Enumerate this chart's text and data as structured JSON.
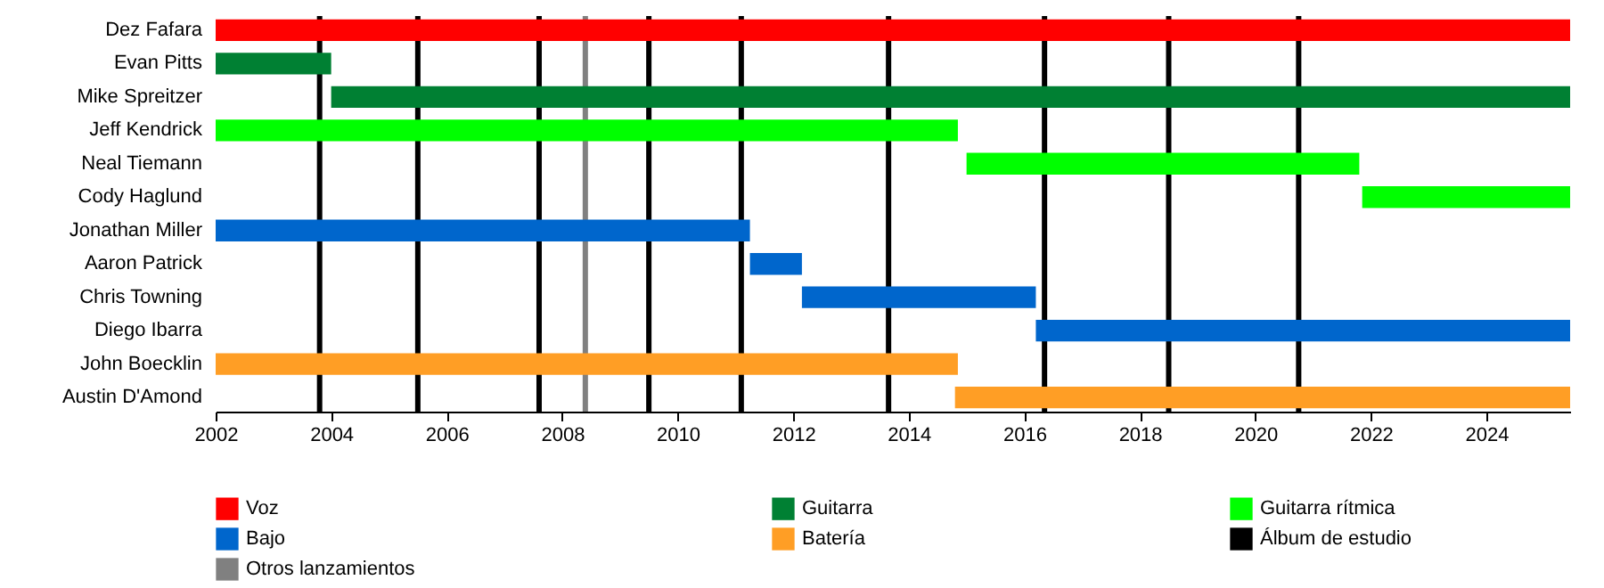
{
  "chart_data": {
    "type": "bar",
    "orientation": "horizontal",
    "categories": [
      "Dez Fafara",
      "Evan Pitts",
      "Mike Spreitzer",
      "Jeff Kendrick",
      "Neal Tiemann",
      "Cody Haglund",
      "Jonathan Miller",
      "Aaron Patrick",
      "Chris Towning",
      "Diego Ibarra",
      "John Boecklin",
      "Austin D'Amond"
    ],
    "series": [
      {
        "name": "Voz",
        "color": "#ff0000",
        "base": [
          2002,
          null,
          null,
          null,
          null,
          null,
          null,
          null,
          null,
          null,
          null,
          null
        ],
        "values": [
          23.45,
          null,
          null,
          null,
          null,
          null,
          null,
          null,
          null,
          null,
          null,
          null
        ]
      },
      {
        "name": "Guitarra",
        "color": "#008033",
        "base": [
          null,
          2002,
          2004,
          null,
          null,
          null,
          null,
          null,
          null,
          null,
          null,
          null
        ],
        "values": [
          null,
          2,
          21.45,
          null,
          null,
          null,
          null,
          null,
          null,
          null,
          null,
          null
        ]
      },
      {
        "name": "Guitarra rítmica",
        "color": "#00ff00",
        "base": [
          null,
          null,
          null,
          2002,
          2015,
          2021.85,
          null,
          null,
          null,
          null,
          null,
          null
        ],
        "values": [
          null,
          null,
          null,
          12.85,
          6.8,
          3.6,
          null,
          null,
          null,
          null,
          null,
          null
        ]
      },
      {
        "name": "Bajo",
        "color": "#0066cc",
        "base": [
          null,
          null,
          null,
          null,
          null,
          null,
          2002,
          2011.25,
          2012.15,
          2016.2,
          null,
          null
        ],
        "values": [
          null,
          null,
          null,
          null,
          null,
          null,
          9.25,
          0.9,
          4.05,
          9.25,
          null,
          null
        ]
      },
      {
        "name": "Batería",
        "color": "#ff9e25",
        "base": [
          null,
          null,
          null,
          null,
          null,
          null,
          null,
          null,
          null,
          null,
          2002,
          2014.8
        ],
        "values": [
          null,
          null,
          null,
          null,
          null,
          null,
          null,
          null,
          null,
          null,
          12.85,
          10.65
        ]
      }
    ],
    "ref_lines": [
      {
        "axis": "x",
        "value": 2003.8,
        "label": "Álbum de estudio",
        "color": "#000000"
      },
      {
        "axis": "x",
        "value": 2005.5,
        "color": "#000000"
      },
      {
        "axis": "x",
        "value": 2007.6,
        "color": "#000000"
      },
      {
        "axis": "x",
        "value": 2009.5,
        "color": "#000000"
      },
      {
        "axis": "x",
        "value": 2011.1,
        "color": "#000000"
      },
      {
        "axis": "x",
        "value": 2013.65,
        "color": "#000000"
      },
      {
        "axis": "x",
        "value": 2016.35,
        "color": "#000000"
      },
      {
        "axis": "x",
        "value": 2018.5,
        "color": "#000000"
      },
      {
        "axis": "x",
        "value": 2020.75,
        "color": "#000000"
      },
      {
        "axis": "x",
        "value": 2008.4,
        "label": "Otros lanzamientos",
        "color": "#808080"
      }
    ],
    "xlim": [
      2002,
      2025.45
    ],
    "xticks": [
      2002,
      2004,
      2006,
      2008,
      2010,
      2012,
      2014,
      2016,
      2018,
      2020,
      2022,
      2024
    ],
    "legend": "bottom"
  }
}
